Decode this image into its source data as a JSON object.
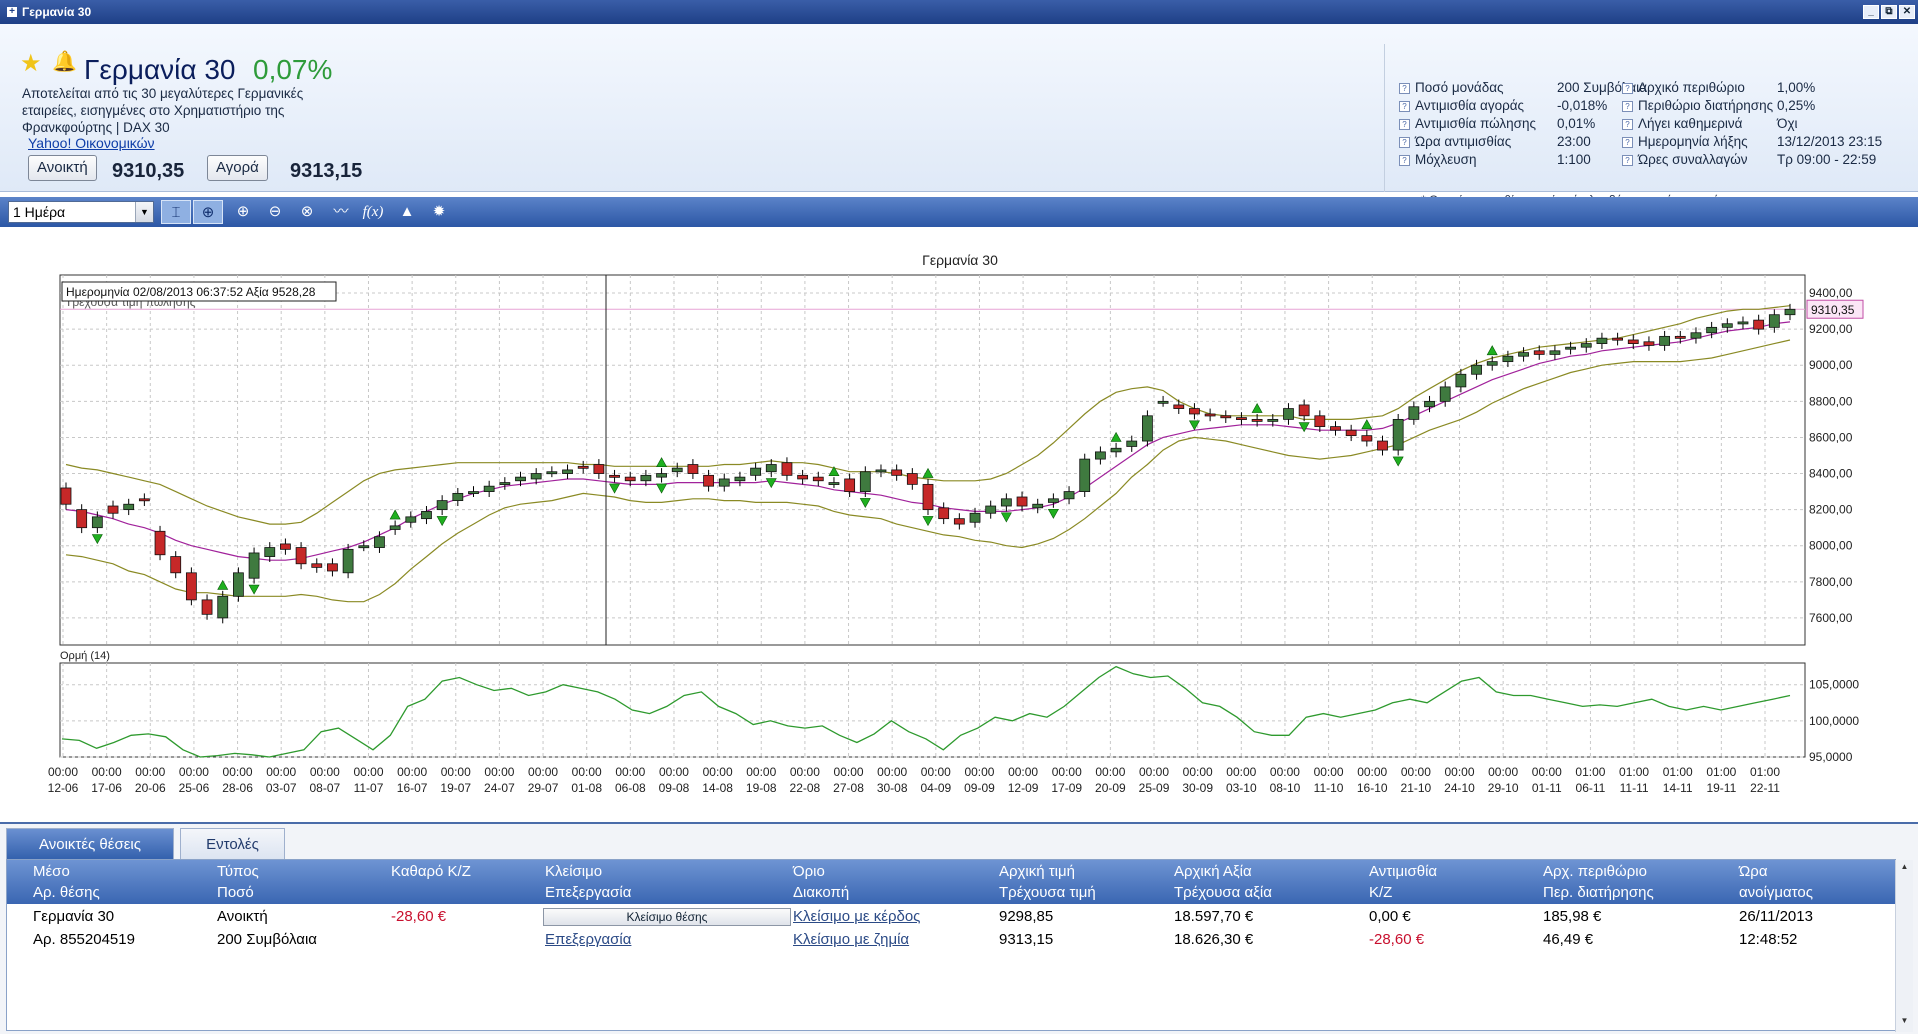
{
  "window": {
    "title": "Γερμανία 30",
    "buttons": [
      "_",
      "⧉",
      "✕"
    ]
  },
  "instrument": {
    "name": "Γερμανία 30",
    "change": "0,07%",
    "description": "Αποτελείται από τις 30 μεγαλύτερες Γερμανικές εταιρείες, εισηγμένες στο Χρηματιστήριο της Φρανκφούρτης | DAX 30",
    "link": "Yahoo! Οικονομικών",
    "sell_label": "Ανοικτή",
    "sell_price": "9310,35",
    "buy_label": "Αγορά",
    "buy_price": "9313,15"
  },
  "specs": {
    "left": [
      {
        "label": "Ποσό μονάδας",
        "value": "200 Συμβόλαια"
      },
      {
        "label": "Αντιμισθία αγοράς",
        "value": "-0,018%"
      },
      {
        "label": "Αντιμισθία πώλησης",
        "value": "0,01%"
      },
      {
        "label": "Ώρα αντιμισθίας",
        "value": "23:00"
      },
      {
        "label": "Μόχλευση",
        "value": "1:100"
      }
    ],
    "right": [
      {
        "label": "Αρχικό περιθώριο",
        "value": "1,00%"
      },
      {
        "label": "Περιθώριο διατήρησης",
        "value": "0,25%"
      },
      {
        "label": "Λήγει καθημερινά",
        "value": "Όχι"
      },
      {
        "label": "Ημερομηνία λήξης",
        "value": "13/12/2013  23:15"
      },
      {
        "label": "Ώρες συναλλαγών",
        "value": "Τρ 09:00 - 22:59"
      }
    ],
    "note": "* Θετική αντιμισθία σημαίνει ότι λαμβάνετε αυτό το ποσό."
  },
  "toolbar": {
    "period": "1 Ημέρα",
    "icons": [
      "cursor-icon",
      "crosshair-icon",
      "zoom-in-icon",
      "zoom-out-icon",
      "zoom-reset-icon",
      "indicator-line-icon",
      "function-icon",
      "alert-bell-icon",
      "settings-gear-icon"
    ]
  },
  "chart_data": {
    "type": "candlestick",
    "title": "Γερμανία 30",
    "tooltip": "Ημερομηνία 02/08/2013 06:37:52 Αξία 9528,28",
    "price_line_label": "Τρέχουσα τιμή πώλησης",
    "current_price": 9310.35,
    "current_price_label": "9310,35",
    "ylim": [
      7450,
      9500
    ],
    "yticks": [
      "9400,00",
      "9200,00",
      "9000,00",
      "8800,00",
      "8600,00",
      "8400,00",
      "8200,00",
      "8000,00",
      "7800,00",
      "7600,00"
    ],
    "ytick_values": [
      9400,
      9200,
      9000,
      8800,
      8600,
      8400,
      8200,
      8000,
      7800,
      7600
    ],
    "xticks_time": [
      "00:00",
      "00:00",
      "00:00",
      "00:00",
      "00:00",
      "00:00",
      "00:00",
      "00:00",
      "00:00",
      "00:00",
      "00:00",
      "00:00",
      "00:00",
      "00:00",
      "00:00",
      "00:00",
      "00:00",
      "00:00",
      "00:00",
      "00:00",
      "00:00",
      "00:00",
      "00:00",
      "00:00",
      "00:00",
      "00:00",
      "00:00",
      "00:00",
      "00:00",
      "00:00",
      "00:00",
      "00:00",
      "00:00",
      "00:00",
      "00:00",
      "01:00",
      "01:00",
      "01:00",
      "01:00",
      "01:00",
      "01:00",
      "01:00"
    ],
    "xticks_date": [
      "12-06",
      "17-06",
      "20-06",
      "25-06",
      "28-06",
      "03-07",
      "08-07",
      "11-07",
      "16-07",
      "19-07",
      "24-07",
      "29-07",
      "01-08",
      "06-08",
      "09-08",
      "14-08",
      "19-08",
      "22-08",
      "27-08",
      "30-08",
      "04-09",
      "09-09",
      "12-09",
      "17-09",
      "20-09",
      "25-09",
      "30-09",
      "03-10",
      "08-10",
      "11-10",
      "16-10",
      "21-10",
      "24-10",
      "29-10",
      "01-11",
      "06-11",
      "11-11",
      "14-11",
      "19-11",
      "22-11"
    ],
    "close": [
      8230,
      8100,
      8160,
      8180,
      8230,
      8250,
      7950,
      7850,
      7700,
      7620,
      7720,
      7850,
      7960,
      7990,
      7980,
      7900,
      7880,
      7860,
      7980,
      8000,
      8050,
      8110,
      8160,
      8190,
      8250,
      8290,
      8300,
      8330,
      8350,
      8380,
      8400,
      8410,
      8420,
      8430,
      8400,
      8380,
      8360,
      8390,
      8400,
      8430,
      8400,
      8330,
      8370,
      8380,
      8430,
      8450,
      8390,
      8370,
      8360,
      8350,
      8300,
      8410,
      8420,
      8390,
      8340,
      8200,
      8150,
      8120,
      8180,
      8220,
      8260,
      8220,
      8230,
      8260,
      8300,
      8480,
      8520,
      8540,
      8580,
      8720,
      8800,
      8760,
      8730,
      8720,
      8710,
      8700,
      8690,
      8700,
      8760,
      8720,
      8660,
      8640,
      8610,
      8580,
      8530,
      8700,
      8770,
      8800,
      8880,
      8950,
      9000,
      9020,
      9050,
      9070,
      9060,
      9080,
      9100,
      9120,
      9150,
      9140,
      9120,
      9110,
      9160,
      9150,
      9180,
      9210,
      9230,
      9240,
      9200,
      9280,
      9310
    ],
    "open": [
      8320,
      8200,
      8100,
      8220,
      8200,
      8260,
      8080,
      7940,
      7850,
      7700,
      7600,
      7720,
      7820,
      7940,
      8010,
      7990,
      7900,
      7900,
      7850,
      8000,
      7990,
      8090,
      8130,
      8150,
      8200,
      8250,
      8300,
      8300,
      8340,
      8360,
      8370,
      8410,
      8400,
      8440,
      8450,
      8390,
      8380,
      8360,
      8380,
      8410,
      8450,
      8390,
      8330,
      8360,
      8390,
      8410,
      8460,
      8390,
      8380,
      8350,
      8370,
      8300,
      8410,
      8420,
      8400,
      8340,
      8210,
      8150,
      8130,
      8180,
      8220,
      8270,
      8210,
      8240,
      8260,
      8300,
      8480,
      8520,
      8550,
      8580,
      8800,
      8780,
      8760,
      8730,
      8720,
      8710,
      8700,
      8690,
      8700,
      8780,
      8720,
      8660,
      8640,
      8610,
      8580,
      8530,
      8700,
      8770,
      8800,
      8880,
      8950,
      9000,
      9020,
      9050,
      9080,
      9060,
      9090,
      9100,
      9120,
      9150,
      9140,
      9130,
      9110,
      9160,
      9150,
      9180,
      9210,
      9230,
      9250,
      9210,
      9280
    ],
    "bb_mid": [
      8200,
      8190,
      8170,
      8150,
      8120,
      8100,
      8070,
      8030,
      8000,
      7980,
      7960,
      7940,
      7930,
      7920,
      7920,
      7930,
      7950,
      7970,
      7990,
      8020,
      8060,
      8100,
      8150,
      8190,
      8230,
      8260,
      8290,
      8310,
      8330,
      8340,
      8350,
      8360,
      8370,
      8370,
      8360,
      8350,
      8340,
      8340,
      8340,
      8350,
      8350,
      8350,
      8350,
      8350,
      8350,
      8360,
      8350,
      8340,
      8330,
      8310,
      8300,
      8290,
      8280,
      8260,
      8240,
      8230,
      8210,
      8200,
      8190,
      8190,
      8190,
      8200,
      8210,
      8230,
      8270,
      8320,
      8380,
      8440,
      8500,
      8560,
      8600,
      8620,
      8640,
      8650,
      8660,
      8670,
      8670,
      8670,
      8660,
      8650,
      8640,
      8640,
      8640,
      8640,
      8650,
      8680,
      8720,
      8760,
      8800,
      8840,
      8880,
      8920,
      8950,
      8980,
      9010,
      9030,
      9050,
      9060,
      9080,
      9090,
      9100,
      9110,
      9120,
      9130,
      9150,
      9170,
      9190,
      9200,
      9210,
      9230,
      9240
    ],
    "bb_up": [
      8450,
      8430,
      8420,
      8400,
      8380,
      8360,
      8340,
      8300,
      8260,
      8220,
      8190,
      8160,
      8140,
      8120,
      8120,
      8130,
      8180,
      8240,
      8300,
      8360,
      8400,
      8420,
      8430,
      8440,
      8450,
      8460,
      8460,
      8460,
      8460,
      8460,
      8460,
      8460,
      8460,
      8450,
      8450,
      8440,
      8440,
      8440,
      8440,
      8440,
      8440,
      8440,
      8450,
      8450,
      8460,
      8470,
      8460,
      8460,
      8450,
      8430,
      8410,
      8410,
      8410,
      8400,
      8380,
      8370,
      8360,
      8360,
      8360,
      8370,
      8400,
      8450,
      8500,
      8570,
      8650,
      8730,
      8800,
      8850,
      8870,
      8880,
      8860,
      8800,
      8760,
      8730,
      8720,
      8720,
      8720,
      8720,
      8720,
      8700,
      8700,
      8700,
      8700,
      8710,
      8720,
      8760,
      8820,
      8870,
      8920,
      8970,
      9010,
      9040,
      9060,
      9080,
      9100,
      9110,
      9120,
      9130,
      9140,
      9150,
      9170,
      9190,
      9210,
      9230,
      9260,
      9280,
      9300,
      9310,
      9310,
      9320,
      9330
    ],
    "bb_lo": [
      7950,
      7940,
      7920,
      7900,
      7860,
      7840,
      7800,
      7760,
      7740,
      7740,
      7730,
      7720,
      7720,
      7720,
      7720,
      7730,
      7720,
      7700,
      7690,
      7690,
      7730,
      7790,
      7870,
      7940,
      8010,
      8070,
      8120,
      8170,
      8210,
      8230,
      8240,
      8250,
      8270,
      8290,
      8280,
      8270,
      8250,
      8240,
      8240,
      8250,
      8260,
      8260,
      8250,
      8250,
      8240,
      8240,
      8240,
      8230,
      8220,
      8190,
      8170,
      8160,
      8150,
      8120,
      8100,
      8080,
      8060,
      8050,
      8030,
      8020,
      8000,
      7990,
      8010,
      8040,
      8090,
      8150,
      8220,
      8290,
      8380,
      8450,
      8530,
      8580,
      8600,
      8590,
      8580,
      8560,
      8540,
      8520,
      8500,
      8490,
      8480,
      8490,
      8500,
      8520,
      8540,
      8560,
      8600,
      8640,
      8670,
      8700,
      8740,
      8790,
      8830,
      8870,
      8900,
      8930,
      8960,
      8980,
      9000,
      9010,
      9020,
      9020,
      9020,
      9020,
      9030,
      9040,
      9060,
      9080,
      9100,
      9120,
      9140
    ],
    "signals_up": [
      10,
      21,
      38,
      49,
      55,
      67,
      76,
      83,
      91,
      117,
      157,
      168,
      194,
      197,
      201,
      212,
      221
    ],
    "signals_down": [
      2,
      12,
      24,
      35,
      38,
      45,
      51,
      55,
      60,
      63,
      72,
      79,
      85,
      113,
      118,
      170,
      178,
      188,
      197,
      205,
      212
    ],
    "momentum": {
      "label": "Ορμή (14)",
      "ylim": [
        95,
        108
      ],
      "yticks": [
        "105,0000",
        "100,0000",
        "95,0000"
      ],
      "ytick_values": [
        105,
        100,
        95
      ],
      "values": [
        97.5,
        97.3,
        96.2,
        97.0,
        98.0,
        98.2,
        97.8,
        96.0,
        94.8,
        95.2,
        95.5,
        95.3,
        95.0,
        95.5,
        96.0,
        98.5,
        99.0,
        97.5,
        96.0,
        98.0,
        102.0,
        103.0,
        105.5,
        106.0,
        105.0,
        104.2,
        104.5,
        103.5,
        104.0,
        105.0,
        104.5,
        104.0,
        103.0,
        101.5,
        101.0,
        102.0,
        103.5,
        104.0,
        102.0,
        101.0,
        99.5,
        100.0,
        99.3,
        99.0,
        99.3,
        98.0,
        97.0,
        98.2,
        100.0,
        98.5,
        97.5,
        96.0,
        98.0,
        99.0,
        100.5,
        100.0,
        101.0,
        100.5,
        102.0,
        104.0,
        106.0,
        107.5,
        106.5,
        106.0,
        106.2,
        104.5,
        102.5,
        102.0,
        100.5,
        98.5,
        98.0,
        98.0,
        100.5,
        101.0,
        100.5,
        101.0,
        101.5,
        102.5,
        103.0,
        102.5,
        104.0,
        105.5,
        106.0,
        104.0,
        103.5,
        103.5,
        103.0,
        102.5,
        102.0,
        102.2,
        102.0,
        102.5,
        103.0,
        102.0,
        101.5,
        102.0,
        101.5,
        102.0,
        102.5,
        103.0,
        103.5
      ]
    }
  },
  "bottom": {
    "tabs": [
      "Ανοικτές θέσεις",
      "Εντολές"
    ],
    "headers": [
      [
        "Μέσο",
        "Αρ. θέσης"
      ],
      [
        "Τύπος",
        "Ποσό"
      ],
      [
        "Καθαρό Κ/Ζ",
        ""
      ],
      [
        "Κλείσιμο",
        "Επεξεργασία"
      ],
      [
        "Όριο",
        "Διακοπή"
      ],
      [
        "Αρχική τιμή",
        "Τρέχουσα τιμή"
      ],
      [
        "Αρχική Αξία",
        "Τρέχουσα αξία"
      ],
      [
        "Αντιμισθία",
        "Κ/Ζ"
      ],
      [
        "Αρχ. περιθώριο",
        "Περ. διατήρησης"
      ],
      [
        "Ώρα",
        "ανοίγματος"
      ]
    ],
    "row1": {
      "instrument": "Γερμανία 30",
      "type": "Ανοικτή",
      "net_pl": "-28,60 €",
      "close_button": "Κλείσιμο θέσης",
      "limit": "Κλείσιμο με κέρδος",
      "open_price": "9298,85",
      "open_value": "18.597,70 €",
      "commission": "0,00 €",
      "init_margin": "185,98 €",
      "open_date": "26/11/2013"
    },
    "row2": {
      "position_no": "Αρ. 855204519",
      "amount": "200 Συμβόλαια",
      "edit": "Επεξεργασία",
      "stop": "Κλείσιμο με ζημία",
      "current_price": "9313,15",
      "current_value": "18.626,30 €",
      "pl": "-28,60 €",
      "maint_margin": "46,49 €",
      "open_time": "12:48:52"
    }
  }
}
